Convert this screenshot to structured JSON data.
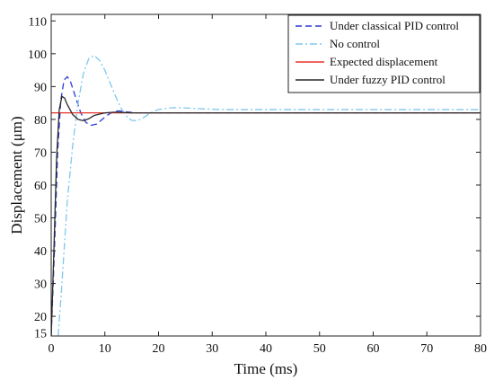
{
  "chart_data": {
    "type": "line",
    "xlabel": "Time (ms)",
    "ylabel": "Displacement (μm)",
    "xlim": [
      0,
      80
    ],
    "ylim": [
      14,
      112
    ],
    "xticks": [
      0,
      10,
      20,
      30,
      40,
      50,
      60,
      70,
      80
    ],
    "yticks": [
      20,
      30,
      40,
      50,
      60,
      70,
      80,
      90,
      100,
      110
    ],
    "yticks_extra": [
      15
    ],
    "grid": false,
    "legend_position": "top-right",
    "series": [
      {
        "name": "Under classical PID control",
        "color": "#2b3bd6",
        "style": "dashed",
        "points": [
          [
            0,
            14
          ],
          [
            0.6,
            40
          ],
          [
            1.2,
            70
          ],
          [
            1.8,
            86
          ],
          [
            2.4,
            92
          ],
          [
            3,
            93
          ],
          [
            3.6,
            91.5
          ],
          [
            4.5,
            87
          ],
          [
            5.5,
            82
          ],
          [
            6.5,
            79
          ],
          [
            7.5,
            78.2
          ],
          [
            8.5,
            78.6
          ],
          [
            9.5,
            80
          ],
          [
            10.5,
            81.3
          ],
          [
            11.5,
            82.3
          ],
          [
            12.5,
            82.6
          ],
          [
            14,
            82.3
          ],
          [
            16,
            82
          ],
          [
            20,
            82
          ],
          [
            80,
            82
          ]
        ]
      },
      {
        "name": "No control",
        "color": "#7fc8ee",
        "style": "dashdot",
        "points": [
          [
            1.3,
            14
          ],
          [
            2,
            30
          ],
          [
            3,
            55
          ],
          [
            4,
            72
          ],
          [
            5,
            85
          ],
          [
            6,
            94
          ],
          [
            7,
            98.5
          ],
          [
            8,
            99.5
          ],
          [
            9,
            98
          ],
          [
            10,
            95
          ],
          [
            11,
            91
          ],
          [
            12,
            87
          ],
          [
            13,
            83.5
          ],
          [
            14,
            81
          ],
          [
            15,
            79.7
          ],
          [
            16,
            79.6
          ],
          [
            17,
            80.3
          ],
          [
            18,
            81.4
          ],
          [
            19,
            82.4
          ],
          [
            20,
            83
          ],
          [
            22,
            83.5
          ],
          [
            24,
            83.6
          ],
          [
            27,
            83.3
          ],
          [
            32,
            83
          ],
          [
            80,
            83
          ]
        ]
      },
      {
        "name": "Expected displacement",
        "color": "#e8332a",
        "style": "solid",
        "points": [
          [
            0,
            82
          ],
          [
            80,
            82
          ]
        ]
      },
      {
        "name": "Under fuzzy PID control",
        "color": "#2a2a2a",
        "style": "solid",
        "points": [
          [
            0,
            14
          ],
          [
            0.5,
            40
          ],
          [
            1,
            68
          ],
          [
            1.5,
            83
          ],
          [
            2,
            87
          ],
          [
            2.5,
            86.5
          ],
          [
            3,
            84.5
          ],
          [
            4,
            81.5
          ],
          [
            5,
            80
          ],
          [
            6,
            79.6
          ],
          [
            7,
            80.2
          ],
          [
            8,
            81.2
          ],
          [
            10,
            82
          ],
          [
            12,
            82.2
          ],
          [
            15,
            82
          ],
          [
            80,
            82
          ]
        ]
      }
    ]
  }
}
